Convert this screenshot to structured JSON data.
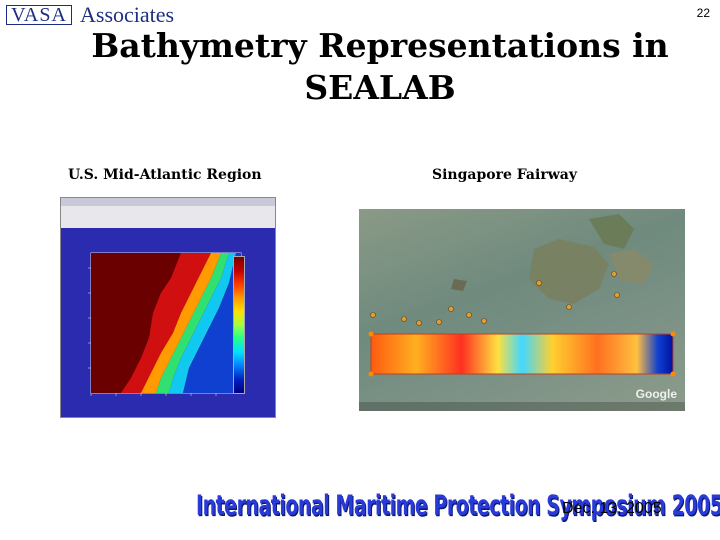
{
  "header": {
    "logo_box_text": "VASA",
    "logo_text": "Associates",
    "slide_number": "22"
  },
  "title_lines": [
    "Bathymetry Representations in",
    "SEALAB"
  ],
  "left_panel": {
    "caption": "U.S. Mid-Atlantic Region"
  },
  "right_panel": {
    "caption": "Singapore Fairway",
    "map_brand": "Google"
  },
  "footer": {
    "banner": "International Maritime Protection Symposium 2005",
    "date": "Dec. 13, 2005"
  },
  "colors": {
    "brand_blue": "#1c2e82",
    "banner_blue": "#2a3ad8"
  }
}
